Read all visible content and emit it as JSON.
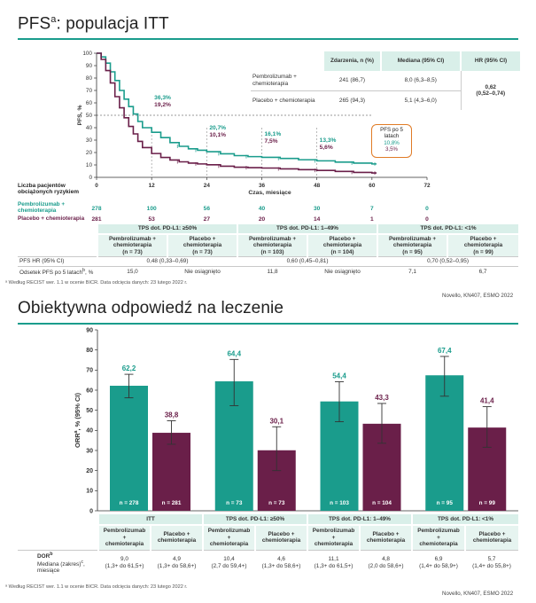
{
  "top": {
    "title_main": "PFS",
    "title_sup": "a",
    "title_rest": ": populacja ITT",
    "footnote": "ᵃ Według RECIST wer. 1.1 w ocenie BICR. Data odcięcia danych: 23 lutego 2022 r.",
    "source": "Novello, KN407, ESMO 2022",
    "km": {
      "ylabel": "PFS, %",
      "xlabel": "Czas, miesiące",
      "yticks": [
        "0",
        "10",
        "20",
        "30",
        "40",
        "50",
        "60",
        "70",
        "80",
        "90",
        "100"
      ],
      "xticks": [
        "0",
        "12",
        "24",
        "36",
        "48",
        "60",
        "72"
      ],
      "annotations": [
        {
          "x": 12,
          "teal": "36,3%",
          "maroon": "19,2%"
        },
        {
          "x": 24,
          "teal": "20,7%",
          "maroon": "10,1%"
        },
        {
          "x": 36,
          "teal": "16,1%",
          "maroon": "7,5%"
        },
        {
          "x": 48,
          "teal": "13,3%",
          "maroon": "5,6%"
        }
      ],
      "callout": {
        "line1": "PFS po 5",
        "line2": "latach",
        "teal": "10,8%",
        "maroon": "3,5%"
      },
      "colors": {
        "teal": "#1a9c8c",
        "maroon": "#6a1f49",
        "callout_border": "#e07b26"
      }
    },
    "hr_table": {
      "headers": [
        "Zdarzenia, n (%)",
        "Mediana (95% CI)",
        "HR (95% CI)"
      ],
      "rows": [
        {
          "arm": "Pembrolizumab + chemioterapia",
          "events": "241 (86,7)",
          "median": "8,0 (6,3–8,5)"
        },
        {
          "arm": "Placebo + chemioterapia",
          "events": "265 (94,3)",
          "median": "5,1 (4,3–6,0)"
        }
      ],
      "hr": "0,62",
      "hr_ci": "(0,52–0,74)"
    },
    "risk": {
      "title_line1": "Liczba pacjentów",
      "title_line2": "obciążonych ryzykiem",
      "arm1_line1": "Pembrolizumab +",
      "arm1_line2": "chemioterapia",
      "arm2": "Placebo + chemioterapia",
      "arm1_values": [
        "278",
        "100",
        "56",
        "40",
        "30",
        "7",
        "0"
      ],
      "arm2_values": [
        "281",
        "53",
        "27",
        "20",
        "14",
        "1",
        "0"
      ]
    },
    "subgroup_table": {
      "groups": [
        "TPS dot. PD-L1: ≥50%",
        "TPS dot. PD-L1: 1–49%",
        "TPS dot. PD-L1: <1%"
      ],
      "arms": [
        {
          "l1": "Pembrolizumab +",
          "l2": "chemioterapia",
          "l3": "(n = 73)"
        },
        {
          "l1": "Placebo +",
          "l2": "chemioterapia",
          "l3": "(n = 73)"
        },
        {
          "l1": "Pembrolizumab +",
          "l2": "chemioterapia",
          "l3": "(n = 103)"
        },
        {
          "l1": "Placebo +",
          "l2": "chemioterapia",
          "l3": "(n = 104)"
        },
        {
          "l1": "Pembrolizumab +",
          "l2": "chemioterapia",
          "l3": "(n = 95)"
        },
        {
          "l1": "Placebo +",
          "l2": "chemioterapia",
          "l3": "(n = 99)"
        }
      ],
      "row1_label": "PFS HR (95% CI)",
      "row1_values": [
        "0,48 (0,33–0,69)",
        "0,60 (0,45–0,81)",
        "0,70 (0,52–0,95)"
      ],
      "row2_label": "Odsetek PFS po 5 latach",
      "row2_sup": "b",
      "row2_unit": ", %",
      "row2_values": [
        "15,0",
        "Nie osiągnięto",
        "11,8",
        "Nie osiągnięto",
        "7,1",
        "6,7"
      ]
    }
  },
  "bottom": {
    "title": "Obiektywna odpowiedź na leczenie",
    "ylabel_main": "ORR",
    "ylabel_sup": "a",
    "ylabel_rest": ", % (95% CI)",
    "footnote": "ᵃ Według RECIST wer. 1.1 w ocenie BICR. Data odcięcia danych: 23 lutego 2022 r.",
    "source": "Novello, KN407, ESMO 2022",
    "table": {
      "groups": [
        "ITT",
        "TPS dot. PD-L1: ≥50%",
        "TPS dot. PD-L1: 1–49%",
        "TPS dot. PD-L1: <1%"
      ],
      "arm_t_l1": "Pembrolizumab",
      "arm_t_l2": "+",
      "arm_t_l3": "chemioterapia",
      "arm_p_l1": "Placebo +",
      "arm_p_l2": "chemioterapia",
      "dor_label": "DOR",
      "dor_sup": "b",
      "dor_line2": "Mediana (zakres)",
      "dor_sup2": "c",
      "dor_line3": ", miesiące",
      "values": [
        [
          "9,0",
          "(1,3+ do 61,5+)"
        ],
        [
          "4,9",
          "(1,3+ do 58,6+)"
        ],
        [
          "10,4",
          "(2,7 do 59,4+)"
        ],
        [
          "4,6",
          "(1,3+ do 58,6+)"
        ],
        [
          "11,1",
          "(1,3+ do 61,5+)"
        ],
        [
          "4,8",
          "(2,0 do 58,6+)"
        ],
        [
          "6,9",
          "(1,4+ do 58,9+)"
        ],
        [
          "5,7",
          "(1,4+ do 55,8+)"
        ]
      ]
    }
  },
  "chart_data": [
    {
      "type": "line",
      "title": "PFSᵃ: populacja ITT",
      "xlabel": "Czas, miesiące",
      "ylabel": "PFS, %",
      "xlim": [
        0,
        72
      ],
      "ylim": [
        0,
        100
      ],
      "series": [
        {
          "name": "Pembrolizumab + chemioterapia",
          "color": "#1a9c8c",
          "x": [
            0,
            1,
            2,
            3,
            4,
            5,
            6,
            7,
            8,
            9,
            10,
            12,
            14,
            16,
            18,
            20,
            22,
            24,
            27,
            30,
            33,
            36,
            40,
            44,
            48,
            52,
            56,
            60,
            61
          ],
          "y": [
            100,
            97,
            92,
            85,
            78,
            70,
            63,
            57,
            51,
            45,
            40,
            36.3,
            32,
            28,
            25,
            23,
            21.8,
            20.7,
            19,
            17.5,
            16.7,
            16.1,
            15.2,
            14.2,
            13.3,
            12.3,
            11.5,
            10.8,
            10.8
          ]
        },
        {
          "name": "Placebo + chemioterapia",
          "color": "#6a1f49",
          "x": [
            0,
            1,
            2,
            3,
            4,
            5,
            6,
            7,
            8,
            9,
            10,
            12,
            14,
            16,
            18,
            20,
            22,
            24,
            27,
            30,
            33,
            36,
            40,
            44,
            48,
            52,
            56,
            60,
            61
          ],
          "y": [
            100,
            95,
            86,
            76,
            65,
            56,
            48,
            41,
            35,
            29,
            24,
            19.2,
            16,
            14,
            12.5,
            11.5,
            10.8,
            10.1,
            9,
            8.2,
            7.8,
            7.5,
            6.8,
            6.2,
            5.6,
            4.8,
            4,
            3.5,
            3.5
          ]
        }
      ]
    },
    {
      "type": "bar",
      "title": "Obiektywna odpowiedź na leczenie",
      "ylabel": "ORRᵃ, % (95% CI)",
      "ylim": [
        0,
        90
      ],
      "yticks": [
        "0",
        "10",
        "20",
        "30",
        "40",
        "50",
        "60",
        "70",
        "80",
        "90"
      ],
      "categories": [
        "ITT",
        "TPS dot. PD-L1: ≥50%",
        "TPS dot. PD-L1: 1–49%",
        "TPS dot. PD-L1: <1%"
      ],
      "series": [
        {
          "name": "Pembrolizumab + chemioterapia",
          "color": "#1a9c8c",
          "values": [
            62.2,
            64.4,
            54.4,
            67.4
          ],
          "labels": [
            "62,2",
            "64,4",
            "54,4",
            "67,4"
          ],
          "ci_low": [
            56.2,
            52.3,
            44.3,
            57.0
          ],
          "ci_high": [
            67.9,
            75.3,
            64.2,
            76.8
          ],
          "n": [
            "n = 278",
            "n = 73",
            "n = 103",
            "n = 95"
          ]
        },
        {
          "name": "Placebo + chemioterapia",
          "color": "#6a1f49",
          "values": [
            38.8,
            30.1,
            43.3,
            41.4
          ],
          "labels": [
            "38,8",
            "30,1",
            "43,3",
            "41,4"
          ],
          "ci_low": [
            33.1,
            20.0,
            33.6,
            31.6
          ],
          "ci_high": [
            44.8,
            41.8,
            53.4,
            51.8
          ],
          "n": [
            "n = 281",
            "n = 73",
            "n = 104",
            "n = 99"
          ]
        }
      ]
    }
  ]
}
